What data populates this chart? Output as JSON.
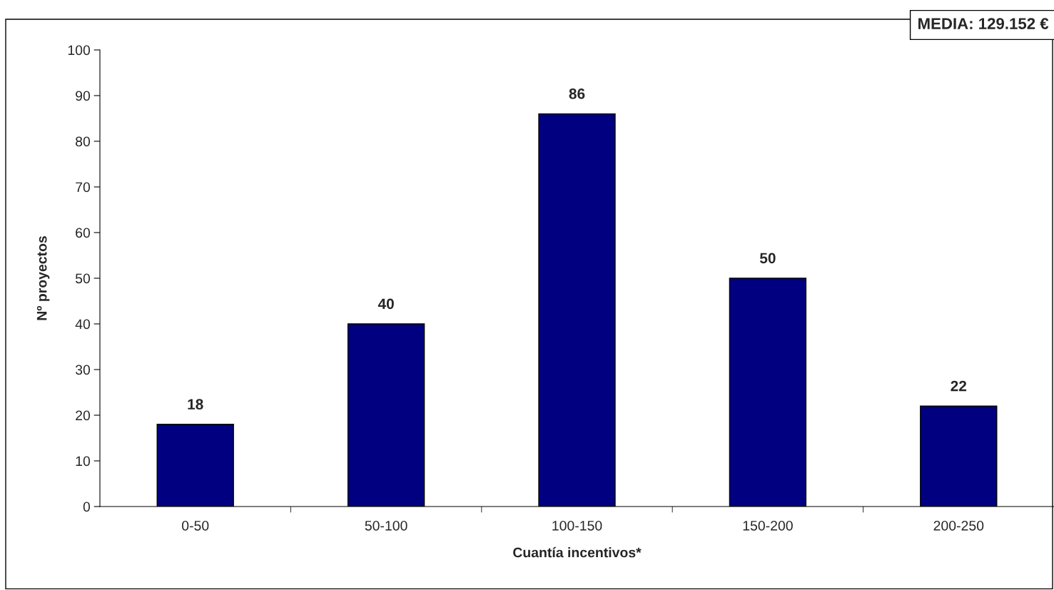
{
  "chart_data": {
    "type": "bar",
    "xlabel": "Cuantía incentivos*",
    "ylabel": "Nº proyectos",
    "categories": [
      "0-50",
      "50-100",
      "100-150",
      "150-200",
      "200-250"
    ],
    "values": [
      18,
      40,
      86,
      50,
      22
    ],
    "color": "#000080",
    "ylim": [
      0,
      100
    ],
    "yticks": [
      0,
      10,
      20,
      30,
      40,
      50,
      60,
      70,
      80,
      90,
      100
    ],
    "data_labels": true,
    "grid": false,
    "legend": false,
    "annotations": [
      "MEDIA: 129.152 €"
    ]
  }
}
